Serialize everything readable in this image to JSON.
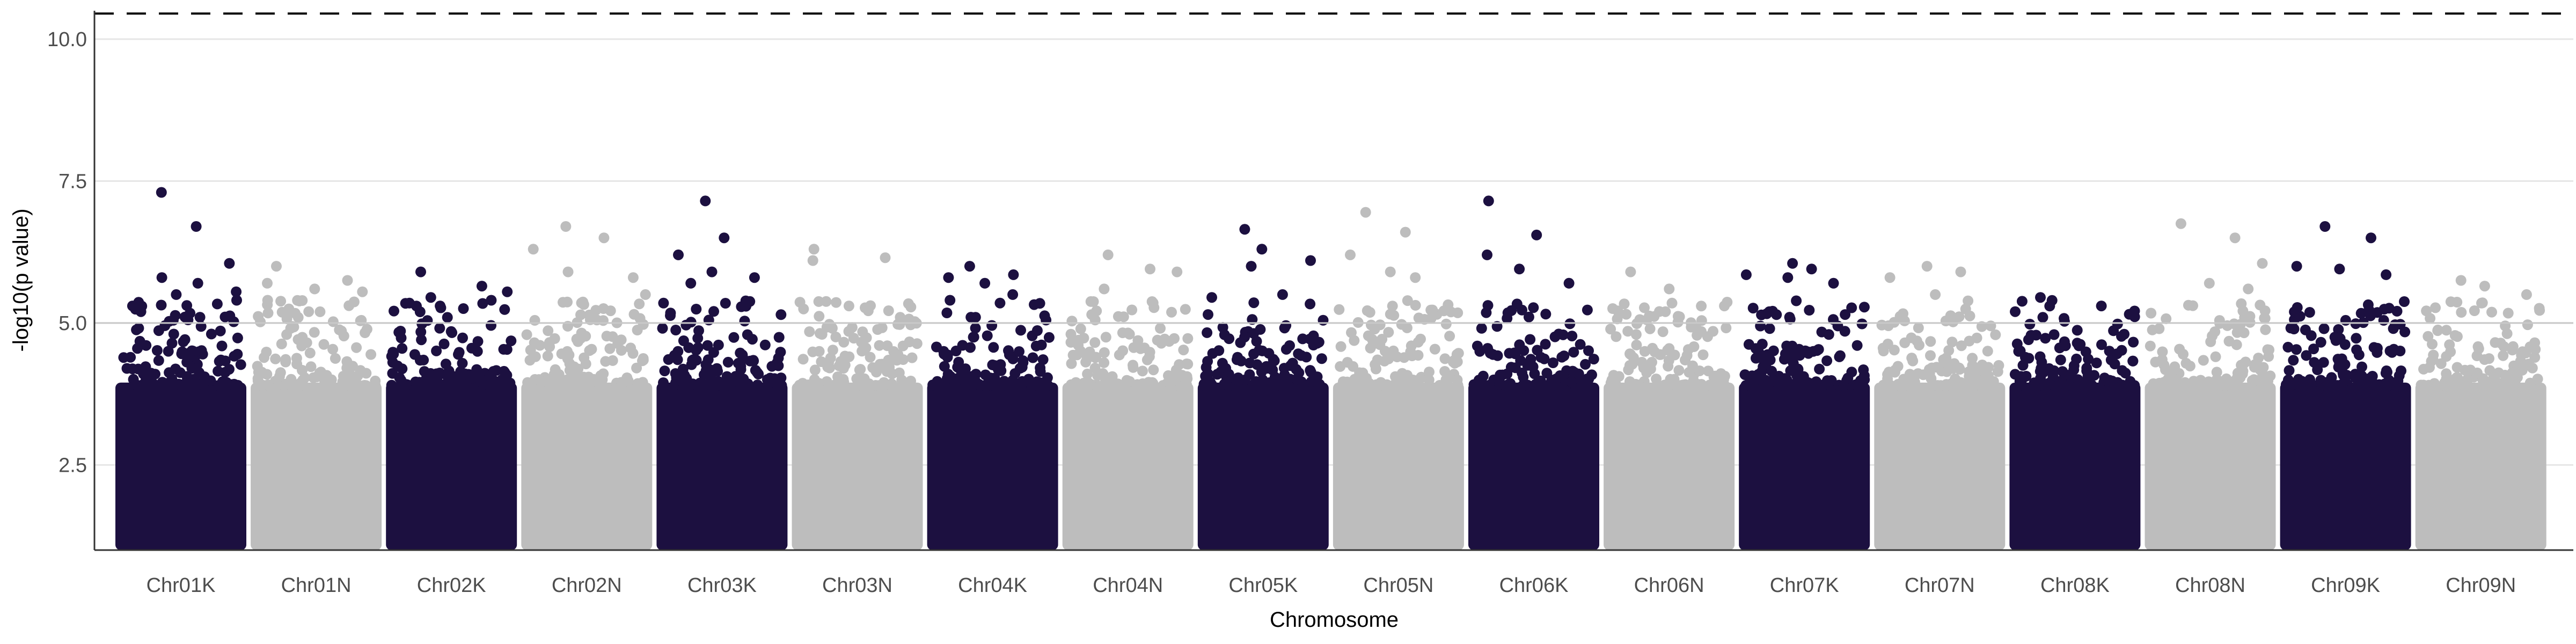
{
  "chart_data": {
    "type": "scatter",
    "subtype": "manhattan",
    "xlabel": "Chromosome",
    "ylabel": "-log10(p value)",
    "ylim": [
      1,
      10.5
    ],
    "yticks": [
      2.5,
      5.0,
      7.5,
      10.0
    ],
    "ytick_labels": [
      "2.5",
      "5.0",
      "7.5",
      "10.0"
    ],
    "categories": [
      "Chr01K",
      "Chr01N",
      "Chr02K",
      "Chr02N",
      "Chr03K",
      "Chr03N",
      "Chr04K",
      "Chr04N",
      "Chr05K",
      "Chr05N",
      "Chr06K",
      "Chr06N",
      "Chr07K",
      "Chr07N",
      "Chr08K",
      "Chr08N",
      "Chr09K",
      "Chr09N"
    ],
    "colors": [
      "#1c1040",
      "#bdbdbd"
    ],
    "grid": "horizontal",
    "thresholds": [
      {
        "y": 10.45,
        "style": "dashed",
        "color": "#000000"
      },
      {
        "y": 5.0,
        "style": "solid",
        "color": "#c8c8c8"
      }
    ],
    "chromosome_max": [
      7.3,
      6.0,
      5.9,
      6.7,
      7.15,
      6.3,
      6.0,
      6.2,
      6.65,
      6.95,
      7.15,
      5.9,
      6.05,
      6.0,
      5.45,
      6.75,
      6.7,
      5.75
    ],
    "top_points": [
      {
        "chromosome": "Chr01K",
        "y": [
          7.3,
          6.7,
          6.05,
          5.8,
          5.7,
          5.55,
          5.5,
          5.4,
          5.3
        ]
      },
      {
        "chromosome": "Chr01N",
        "y": [
          6.0,
          5.75,
          5.7,
          5.6,
          5.55,
          5.4,
          5.2
        ]
      },
      {
        "chromosome": "Chr02K",
        "y": [
          5.9,
          5.65,
          5.55,
          5.45,
          5.4,
          5.35,
          5.3
        ]
      },
      {
        "chromosome": "Chr02N",
        "y": [
          6.7,
          6.5,
          6.3,
          5.9,
          5.8,
          5.5
        ]
      },
      {
        "chromosome": "Chr03K",
        "y": [
          7.15,
          6.5,
          6.2,
          5.9,
          5.8,
          5.7
        ]
      },
      {
        "chromosome": "Chr03N",
        "y": [
          6.3,
          6.15,
          6.1,
          5.3,
          5.1
        ]
      },
      {
        "chromosome": "Chr04K",
        "y": [
          6.0,
          5.85,
          5.8,
          5.7,
          5.5,
          5.4
        ]
      },
      {
        "chromosome": "Chr04N",
        "y": [
          6.2,
          5.95,
          5.9,
          5.6
        ]
      },
      {
        "chromosome": "Chr05K",
        "y": [
          6.65,
          6.3,
          6.1,
          6.0,
          5.5,
          5.45
        ]
      },
      {
        "chromosome": "Chr05N",
        "y": [
          6.95,
          6.6,
          6.2,
          5.9,
          5.8
        ]
      },
      {
        "chromosome": "Chr06K",
        "y": [
          7.15,
          6.55,
          6.2,
          5.95,
          5.7
        ]
      },
      {
        "chromosome": "Chr06N",
        "y": [
          5.9,
          5.6,
          5.3,
          5.2
        ]
      },
      {
        "chromosome": "Chr07K",
        "y": [
          6.05,
          5.95,
          5.85,
          5.8,
          5.7,
          5.2
        ]
      },
      {
        "chromosome": "Chr07N",
        "y": [
          6.0,
          5.9,
          5.8,
          5.5
        ]
      },
      {
        "chromosome": "Chr08K",
        "y": [
          5.45,
          5.3,
          5.2,
          5.1
        ]
      },
      {
        "chromosome": "Chr08N",
        "y": [
          6.75,
          6.5,
          6.05,
          5.7,
          5.6
        ]
      },
      {
        "chromosome": "Chr09K",
        "y": [
          6.7,
          6.5,
          6.0,
          5.95,
          5.85
        ]
      },
      {
        "chromosome": "Chr09N",
        "y": [
          5.75,
          5.65,
          5.5,
          5.35
        ]
      }
    ]
  }
}
